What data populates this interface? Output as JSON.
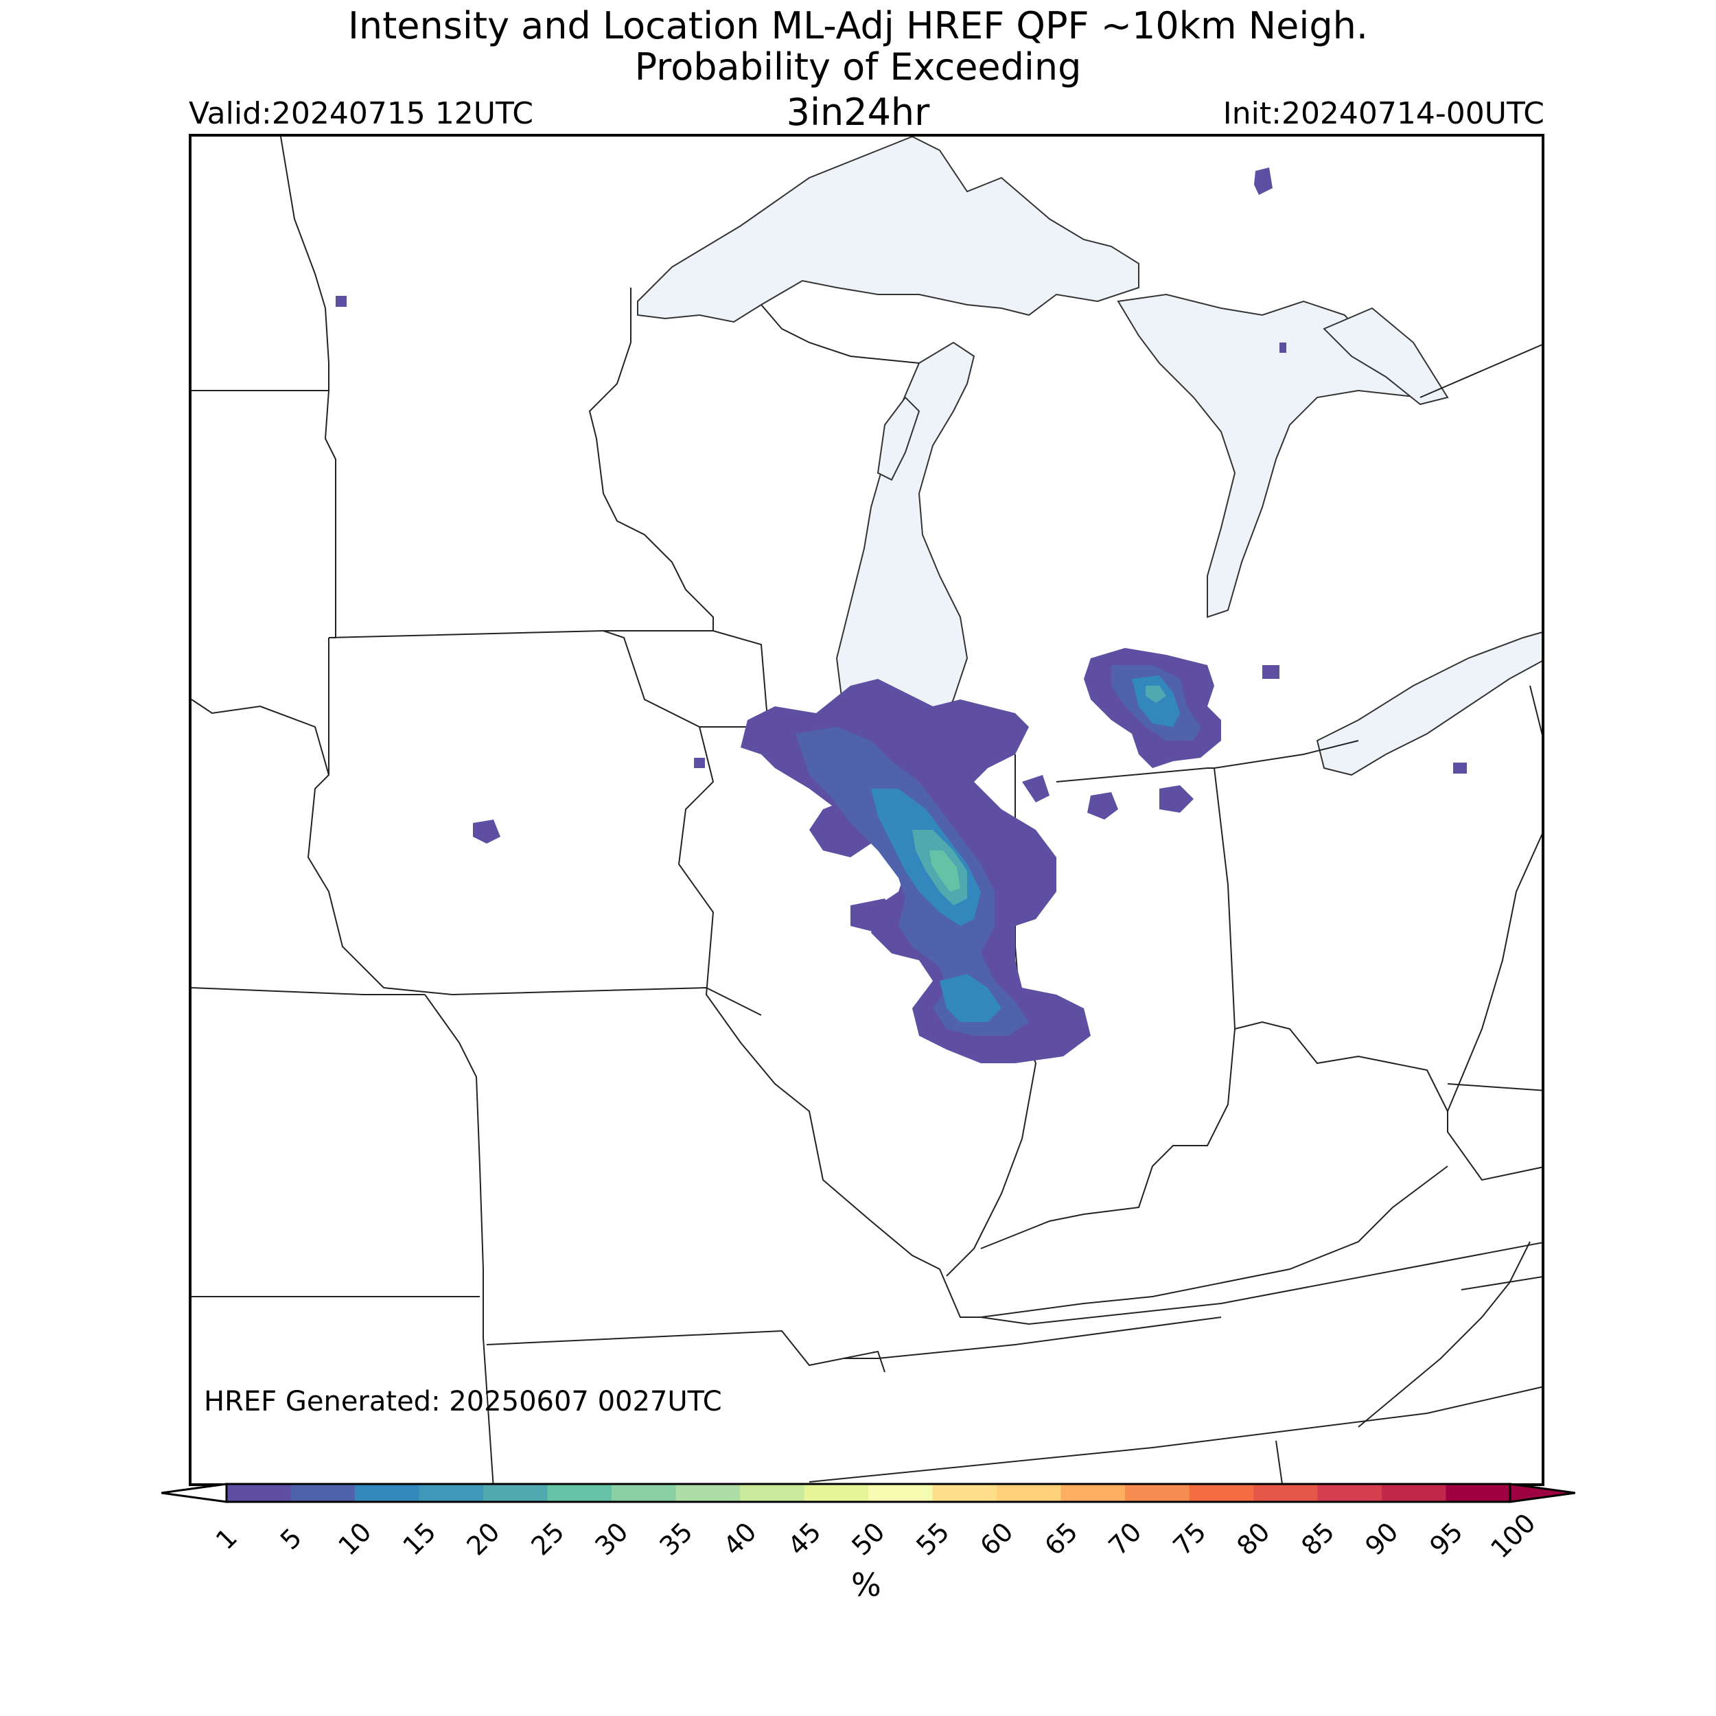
{
  "header": {
    "title_line1": "Intensity and Location ML-Adj HREF QPF ~10km Neigh.",
    "title_line2": "Probability of Exceeding",
    "threshold": "3in24hr",
    "valid": "Valid:20240715 12UTC",
    "init": "Init:20240714-00UTC"
  },
  "footer": {
    "generated": "HREF Generated: 20250607 0027UTC"
  },
  "colorbar": {
    "ticks": [
      "1",
      "5",
      "10",
      "15",
      "20",
      "25",
      "30",
      "35",
      "40",
      "45",
      "50",
      "55",
      "60",
      "65",
      "70",
      "75",
      "80",
      "85",
      "90",
      "95",
      "100"
    ],
    "colors": [
      "#5e4fa2",
      "#4f62ab",
      "#3288bd",
      "#3e98b8",
      "#50a9af",
      "#66c2a5",
      "#89d0a4",
      "#abdda4",
      "#cbe99d",
      "#e6f598",
      "#f6fbb2",
      "#fee08b",
      "#fdd07a",
      "#fdae61",
      "#f88d52",
      "#f46d43",
      "#e55749",
      "#d53e4f",
      "#c1274a",
      "#9e0142"
    ],
    "units": "%"
  },
  "map": {
    "region": "Upper Midwest / Great Lakes",
    "lake_color": "#eef3fa",
    "max_probability_pct": 25
  }
}
